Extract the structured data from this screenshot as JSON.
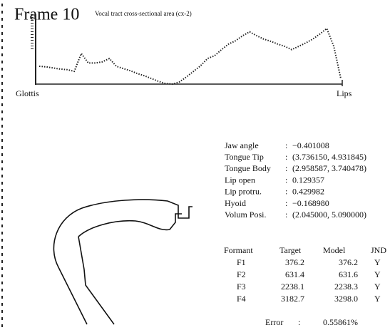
{
  "chart_data": {
    "type": "line",
    "title": "Frame 10",
    "subtitle": "Vocal tract cross-sectional area (cx-2)",
    "xlabels": [
      "Glottis",
      "Lips"
    ],
    "values": [
      3.2,
      3.1,
      2.9,
      2.7,
      2.6,
      2.3,
      5.5,
      3.8,
      3.8,
      4.0,
      4.6,
      3.2,
      2.8,
      2.4,
      1.9,
      1.5,
      1.0,
      0.5,
      0.1,
      0,
      0.4,
      1.3,
      2.3,
      3.3,
      4.6,
      5.1,
      6.2,
      7.2,
      7.8,
      8.7,
      9.4,
      8.7,
      8.1,
      7.7,
      7.2,
      6.8,
      6.2,
      6.8,
      7.4,
      8.1,
      9.0,
      10,
      6.8,
      1.0
    ],
    "ylim": [
      0,
      10
    ],
    "color": "#222"
  },
  "parameters": [
    {
      "label": "Jaw angle",
      "value": "−0.401008"
    },
    {
      "label": "Tongue Tip",
      "value": "(3.736150, 4.931845)"
    },
    {
      "label": "Tongue Body",
      "value": "(2.958587, 3.740478)"
    },
    {
      "label": "Lip open",
      "value": "0.129357"
    },
    {
      "label": "Lip protru.",
      "value": "0.429982"
    },
    {
      "label": "Hyoid",
      "value": "−0.168980"
    },
    {
      "label": "Volum Posi.",
      "value": "(2.045000, 5.090000)"
    }
  ],
  "separator": ":",
  "formant_table": {
    "header": [
      "Formant",
      "Target",
      "Model",
      "JND"
    ],
    "rows": [
      [
        "F1",
        "376.2",
        "376.2",
        "Y"
      ],
      [
        "F2",
        "631.4",
        "631.6",
        "Y"
      ],
      [
        "F3",
        "2238.1",
        "2238.3",
        "Y"
      ],
      [
        "F4",
        "3182.7",
        "3298.0",
        "Y"
      ]
    ]
  },
  "error": {
    "label": "Error",
    "value": "0.55861%"
  }
}
